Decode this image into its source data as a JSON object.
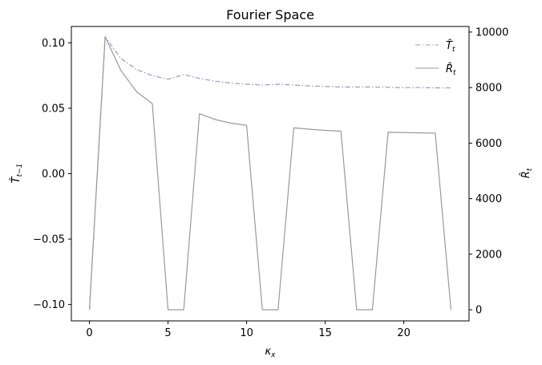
{
  "chart_data": {
    "type": "line",
    "title": "Fourier Space",
    "xlabel": "κ_x",
    "ylabel_left": "T̂_{t−1}",
    "ylabel_right": "R̂_t",
    "xlim": [
      -1.15,
      24.15
    ],
    "ylim_left": [
      -0.1125,
      0.1125
    ],
    "ylim_right": [
      -400,
      10200
    ],
    "x_ticks": [
      0,
      5,
      10,
      15,
      20
    ],
    "x_tick_labels": [
      "0",
      "5",
      "10",
      "15",
      "20"
    ],
    "y_left_ticks": [
      -0.1,
      -0.05,
      0.0,
      0.05,
      0.1
    ],
    "y_left_tick_labels": [
      "−0.10",
      "−0.05",
      "0.00",
      "0.05",
      "0.10"
    ],
    "y_right_ticks": [
      0,
      2000,
      4000,
      6000,
      8000,
      10000
    ],
    "y_right_tick_labels": [
      "0",
      "2000",
      "4000",
      "6000",
      "8000",
      "10000"
    ],
    "grid": false,
    "legend_position": "top-right",
    "series": [
      {
        "name": "T̂_t",
        "axis": "right",
        "color": "#9999cc",
        "style": "dash-dot",
        "x": [
          0,
          1,
          2,
          3,
          4,
          5,
          6,
          7,
          8,
          9,
          10,
          11,
          12,
          13,
          14,
          15,
          16,
          17,
          18,
          19,
          20,
          21,
          22,
          23
        ],
        "y": [
          0,
          9830,
          9050,
          8650,
          8430,
          8300,
          8470,
          8330,
          8230,
          8160,
          8120,
          8090,
          8120,
          8090,
          8060,
          8040,
          8020,
          8020,
          8020,
          8010,
          8000,
          8000,
          7990,
          7990
        ]
      },
      {
        "name": "R̂_t",
        "axis": "right",
        "color": "#999999",
        "style": "solid",
        "x": [
          0,
          1,
          2,
          3,
          4,
          5,
          6,
          7,
          8,
          9,
          10,
          11,
          12,
          13,
          14,
          15,
          16,
          17,
          18,
          19,
          20,
          21,
          22,
          23
        ],
        "y": [
          0,
          9830,
          8620,
          7850,
          7420,
          0,
          0,
          7060,
          6850,
          6720,
          6640,
          0,
          0,
          6550,
          6500,
          6460,
          6430,
          0,
          0,
          6390,
          6380,
          6370,
          6360,
          0
        ]
      }
    ]
  }
}
